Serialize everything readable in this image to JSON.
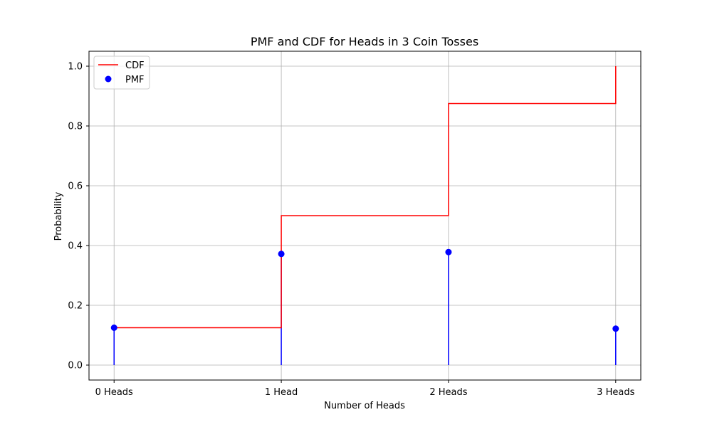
{
  "chart_data": {
    "type": "line",
    "title": "PMF and CDF for Heads in 3 Coin Tosses",
    "xlabel": "Number of Heads",
    "ylabel": "Probability",
    "categories": [
      "0 Heads",
      "1 Head",
      "2 Heads",
      "3 Heads"
    ],
    "x": [
      0,
      1,
      2,
      3
    ],
    "ylim": [
      -0.05,
      1.05
    ],
    "xlim": [
      -0.15,
      3.15
    ],
    "yticks": [
      0.0,
      0.2,
      0.4,
      0.6,
      0.8,
      1.0
    ],
    "ytick_labels": [
      "0.0",
      "0.2",
      "0.4",
      "0.6",
      "0.8",
      "1.0"
    ],
    "grid": true,
    "legend_position": "top-left",
    "series": [
      {
        "name": "CDF",
        "kind": "step-post",
        "color": "#ff0000",
        "values": [
          0.125,
          0.5,
          0.875,
          1.0
        ]
      },
      {
        "name": "PMF",
        "kind": "stem",
        "color": "#0000ff",
        "values": [
          0.125,
          0.372,
          0.378,
          0.122
        ]
      }
    ]
  }
}
